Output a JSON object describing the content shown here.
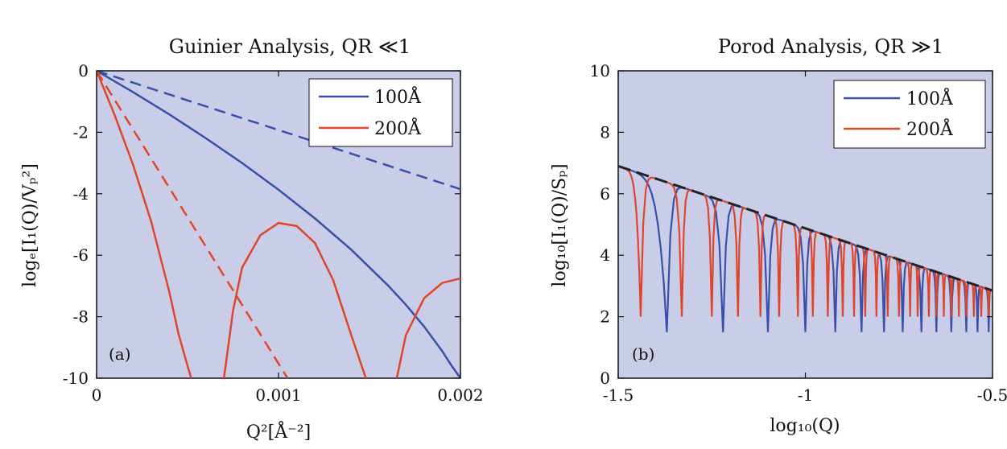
{
  "chart_data": [
    {
      "type": "line",
      "panel_label": "(a)",
      "title": "Guinier Analysis, QR ≪1",
      "xlabel": "Q²[Å⁻²]",
      "ylabel": "logₑ[I₁(Q)/Vₚ²]",
      "xlim": [
        0,
        0.002
      ],
      "ylim": [
        -10,
        0
      ],
      "xticks": [
        {
          "v": 0,
          "label": "0"
        },
        {
          "v": 0.001,
          "label": "0.001"
        },
        {
          "v": 0.002,
          "label": "0.002"
        }
      ],
      "yticks": [
        {
          "v": 0,
          "label": "0"
        },
        {
          "v": -2,
          "label": "-2"
        },
        {
          "v": -4,
          "label": "-4"
        },
        {
          "v": -6,
          "label": "-6"
        },
        {
          "v": -8,
          "label": "-8"
        },
        {
          "v": -10,
          "label": "-10"
        }
      ],
      "legend": {
        "placement": "top-right",
        "entries": [
          {
            "label": "100Å",
            "color": "#3a4fa8"
          },
          {
            "label": "200Å",
            "color": "#e0452a"
          }
        ]
      },
      "grid": false,
      "series": [
        {
          "name": "100Å",
          "color": "#3a4fa8",
          "dash": false,
          "x": [
            0,
            0.0002,
            0.0004,
            0.0006,
            0.0008,
            0.001,
            0.0012,
            0.0014,
            0.0016,
            0.0017,
            0.0018,
            0.0019,
            0.00195,
            0.002
          ],
          "y": [
            0,
            -0.69,
            -1.42,
            -2.19,
            -3.0,
            -3.87,
            -4.8,
            -5.82,
            -6.97,
            -7.61,
            -8.32,
            -9.12,
            -9.58,
            -10.0
          ]
        },
        {
          "name": "100Å Guinier",
          "color": "#3a4fa8",
          "dash": true,
          "x": [
            0,
            0.002
          ],
          "y": [
            0,
            -3.85
          ]
        },
        {
          "name": "200Å",
          "color": "#e0452a",
          "dash": false,
          "x": [
            0,
            0.0001,
            0.0002,
            0.0003,
            0.0004,
            0.00045,
            0.0005,
            0.00052
          ],
          "y": [
            0,
            -1.45,
            -3.05,
            -4.9,
            -7.2,
            -8.55,
            -9.6,
            -10.0
          ]
        },
        {
          "name": "200Å lobe",
          "color": "#e0452a",
          "dash": false,
          "x": [
            0.0007,
            0.00075,
            0.0008,
            0.0009,
            0.001,
            0.0011,
            0.0012,
            0.0013,
            0.0014,
            0.00148
          ],
          "y": [
            -10.0,
            -7.8,
            -6.4,
            -5.35,
            -4.95,
            -5.05,
            -5.6,
            -6.8,
            -8.6,
            -10.0
          ]
        },
        {
          "name": "200Å lobe 2",
          "color": "#e0452a",
          "dash": false,
          "x": [
            0.00165,
            0.0017,
            0.0018,
            0.0019,
            0.002
          ],
          "y": [
            -10.0,
            -8.6,
            -7.4,
            -6.9,
            -6.75
          ]
        },
        {
          "name": "200Å Guinier",
          "color": "#e0452a",
          "dash": true,
          "x": [
            0,
            0.00105
          ],
          "y": [
            0,
            -10.0
          ]
        }
      ]
    },
    {
      "type": "line",
      "panel_label": "(b)",
      "title": "Porod Analysis, QR ≫1",
      "xlabel": "log₁₀(Q)",
      "ylabel": "log₁₀[I₁(Q)/Sₚ]",
      "xlim": [
        -1.5,
        -0.5
      ],
      "ylim": [
        0,
        10
      ],
      "xticks": [
        {
          "v": -1.5,
          "label": "-1.5"
        },
        {
          "v": -1,
          "label": "-1"
        },
        {
          "v": -0.5,
          "label": "-0.5"
        }
      ],
      "yticks": [
        {
          "v": 0,
          "label": "0"
        },
        {
          "v": 2,
          "label": "2"
        },
        {
          "v": 4,
          "label": "4"
        },
        {
          "v": 6,
          "label": "6"
        },
        {
          "v": 8,
          "label": "8"
        },
        {
          "v": 10,
          "label": "10"
        }
      ],
      "legend": {
        "placement": "top-right",
        "entries": [
          {
            "label": "100Å",
            "color": "#3a4fa8"
          },
          {
            "label": "200Å",
            "color": "#e0452a"
          }
        ]
      },
      "grid": false,
      "porod_line": {
        "color": "#222222",
        "dash": true,
        "x": [
          -1.5,
          -0.5
        ],
        "y": [
          6.9,
          2.85
        ]
      },
      "series": [
        {
          "name": "100Å",
          "color": "#3a4fa8",
          "minima": [
            -1.37,
            -1.22,
            -1.1,
            -1.0,
            -0.92,
            -0.85,
            -0.79,
            -0.74,
            -0.69,
            -0.65,
            -0.61,
            -0.57,
            -0.54,
            -0.51
          ],
          "min_depth": [
            1.5,
            1.5,
            1.5,
            1.5,
            1.5,
            1.5,
            1.5,
            1.5,
            1.5,
            1.5,
            1.5,
            1.5,
            1.5,
            1.5
          ]
        },
        {
          "name": "200Å",
          "color": "#e0452a",
          "minima": [
            -1.44,
            -1.33,
            -1.25,
            -1.18,
            -1.12,
            -1.07,
            -1.02,
            -0.98,
            -0.94,
            -0.9,
            -0.87,
            -0.84,
            -0.81,
            -0.78,
            -0.75,
            -0.72,
            -0.7,
            -0.67,
            -0.65,
            -0.63,
            -0.61,
            -0.59,
            -0.57,
            -0.55,
            -0.53,
            -0.51
          ],
          "min_depth": [
            2.0,
            2.0,
            2.0,
            2.0,
            2.0,
            2.0,
            2.0,
            2.0,
            2.0,
            2.0,
            2.0,
            2.0,
            2.0,
            2.0,
            2.0,
            2.0,
            2.0,
            2.0,
            2.0,
            2.0,
            2.0,
            2.0,
            2.0,
            2.0,
            2.0,
            2.0
          ]
        }
      ]
    }
  ],
  "colors": {
    "plot_background": "#c9cde8",
    "axis": "#111111"
  }
}
